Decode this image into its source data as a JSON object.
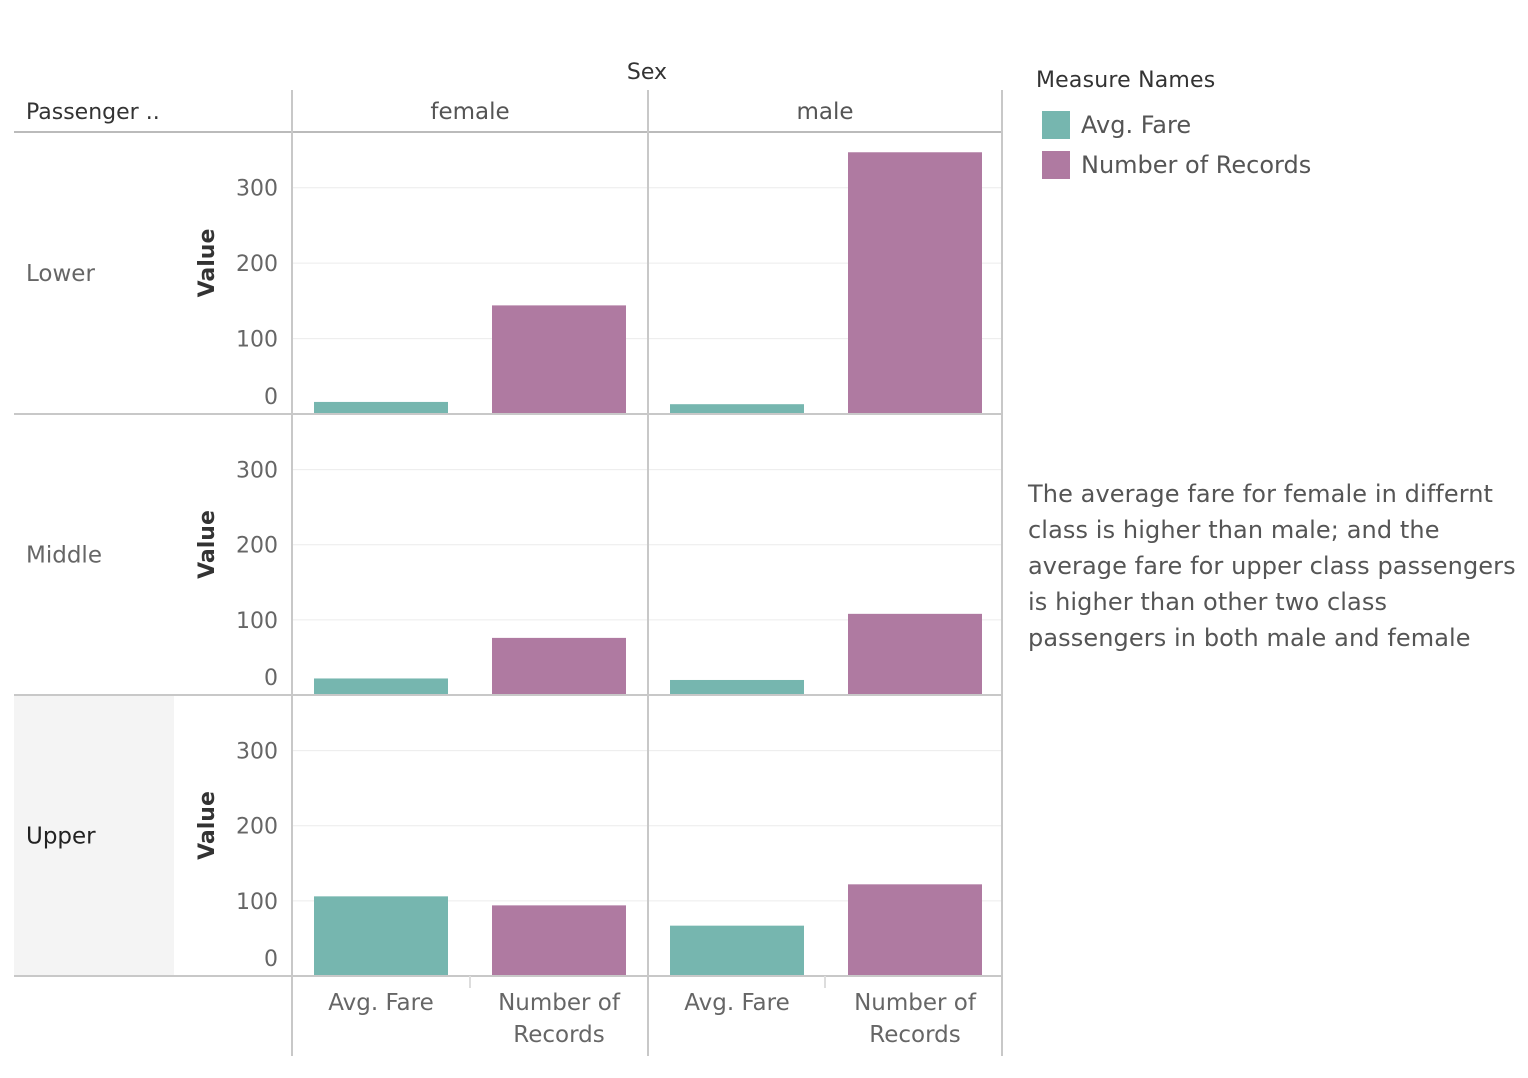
{
  "chart_data": {
    "type": "bar",
    "column_header": "Sex",
    "row_header": "Passenger ..",
    "columns": [
      "female",
      "male"
    ],
    "rows": [
      "Lower",
      "Middle",
      "Upper"
    ],
    "selected_row": "Upper",
    "categories": [
      "Avg. Fare",
      "Number of Records"
    ],
    "category_labels": [
      [
        "Avg. Fare"
      ],
      [
        "Number of",
        "Records"
      ]
    ],
    "ylabel": "Value",
    "ylim": [
      0,
      350
    ],
    "yticks": [
      0,
      100,
      200,
      300
    ],
    "grid": true,
    "cells": [
      {
        "row": "Lower",
        "column": "female",
        "values": [
          16,
          144
        ]
      },
      {
        "row": "Lower",
        "column": "male",
        "values": [
          13,
          347
        ]
      },
      {
        "row": "Middle",
        "column": "female",
        "values": [
          22,
          76
        ]
      },
      {
        "row": "Middle",
        "column": "male",
        "values": [
          20,
          108
        ]
      },
      {
        "row": "Upper",
        "column": "female",
        "values": [
          106,
          94
        ]
      },
      {
        "row": "Upper",
        "column": "male",
        "values": [
          67,
          122
        ]
      }
    ],
    "colors": {
      "Avg. Fare": "#76b6af",
      "Number of Records": "#af7aa1"
    },
    "legend": {
      "title": "Measure Names",
      "position": "top-right",
      "items": [
        {
          "label": "Avg. Fare",
          "color": "#76b6af"
        },
        {
          "label": "Number of Records",
          "color": "#af7aa1"
        }
      ]
    },
    "annotation": "The average fare for female in differnt class is higher than male; and the average fare for upper class passengers is higher than other two class passengers in both male and female"
  }
}
